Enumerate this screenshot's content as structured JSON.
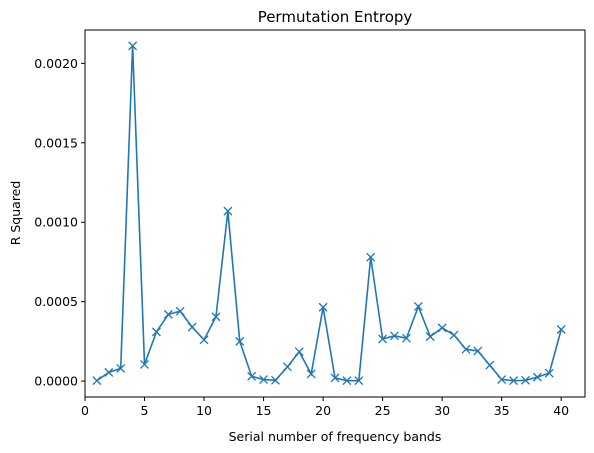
{
  "chart_data": {
    "type": "line",
    "title": "Permutation Entropy",
    "xlabel": "Serial number of frequency bands",
    "ylabel": "R Squared",
    "xlim": [
      0,
      42
    ],
    "ylim": [
      -0.0001,
      0.00221
    ],
    "xticks": [
      0,
      5,
      10,
      15,
      20,
      25,
      30,
      35,
      40
    ],
    "xtick_labels": [
      "0",
      "5",
      "10",
      "15",
      "20",
      "25",
      "30",
      "35",
      "40"
    ],
    "yticks": [
      0.0,
      0.0005,
      0.001,
      0.0015,
      0.002
    ],
    "ytick_labels": [
      "0.0000",
      "0.0005",
      "0.0010",
      "0.0015",
      "0.0020"
    ],
    "grid": false,
    "marker": "x",
    "color": "#1f77b4",
    "series": [
      {
        "x": [
          1,
          2,
          3,
          4,
          5,
          6,
          7,
          8,
          9,
          10,
          11,
          12,
          13,
          14,
          15,
          16,
          17,
          18,
          19,
          20,
          21,
          22,
          23,
          24,
          25,
          26,
          27,
          28,
          29,
          30,
          31,
          32,
          33,
          34,
          35,
          36,
          37,
          38,
          39,
          40
        ],
        "values": [
          3e-06,
          5.5e-05,
          8e-05,
          0.00211,
          0.000105,
          0.00031,
          0.00042,
          0.00044,
          0.00034,
          0.00026,
          0.000405,
          0.00107,
          0.00025,
          3e-05,
          1e-05,
          5e-06,
          9e-05,
          0.000185,
          4.5e-05,
          0.000465,
          2e-05,
          3e-06,
          3e-06,
          0.00078,
          0.000265,
          0.000285,
          0.00027,
          0.00047,
          0.00028,
          0.000335,
          0.00029,
          0.0002,
          0.00019,
          0.0001,
          1e-05,
          3e-06,
          5e-06,
          2.5e-05,
          5e-05,
          0.000325
        ]
      }
    ]
  }
}
